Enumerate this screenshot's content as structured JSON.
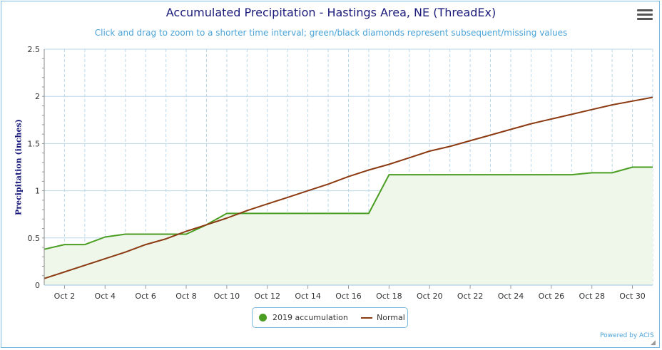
{
  "chart_data": {
    "type": "line",
    "title": "Accumulated Precipitation - Hastings Area, NE (ThreadEx)",
    "subtitle": "Click and drag to zoom to a shorter time interval; green/black diamonds represent subsequent/missing values",
    "ylabel": "Precipitation (inches)",
    "ylim": [
      0,
      2.5
    ],
    "yticks": [
      "0",
      "0.5",
      "1",
      "1.5",
      "2",
      "2.5"
    ],
    "xlim": [
      1,
      31
    ],
    "xticks": [
      {
        "day": 2,
        "label": "Oct 2"
      },
      {
        "day": 4,
        "label": "Oct 4"
      },
      {
        "day": 6,
        "label": "Oct 6"
      },
      {
        "day": 8,
        "label": "Oct 8"
      },
      {
        "day": 10,
        "label": "Oct 10"
      },
      {
        "day": 12,
        "label": "Oct 12"
      },
      {
        "day": 14,
        "label": "Oct 14"
      },
      {
        "day": 16,
        "label": "Oct 16"
      },
      {
        "day": 18,
        "label": "Oct 18"
      },
      {
        "day": 20,
        "label": "Oct 20"
      },
      {
        "day": 22,
        "label": "Oct 22"
      },
      {
        "day": 24,
        "label": "Oct 24"
      },
      {
        "day": 26,
        "label": "Oct 26"
      },
      {
        "day": 28,
        "label": "Oct 28"
      },
      {
        "day": 30,
        "label": "Oct 30"
      }
    ],
    "series": [
      {
        "name": "2019 accumulation",
        "color": "#4a9e22",
        "fill": "#eef7e9",
        "x": [
          1,
          2,
          3,
          4,
          5,
          6,
          7,
          8,
          9,
          10,
          11,
          12,
          13,
          14,
          15,
          16,
          17,
          18,
          19,
          20,
          21,
          22,
          23,
          24,
          25,
          26,
          27,
          28,
          29,
          30,
          31
        ],
        "values": [
          0.38,
          0.43,
          0.43,
          0.51,
          0.54,
          0.54,
          0.54,
          0.54,
          0.64,
          0.76,
          0.76,
          0.76,
          0.76,
          0.76,
          0.76,
          0.76,
          0.76,
          1.17,
          1.17,
          1.17,
          1.17,
          1.17,
          1.17,
          1.17,
          1.17,
          1.17,
          1.17,
          1.19,
          1.19,
          1.25,
          1.25
        ]
      },
      {
        "name": "Normal",
        "color": "#8b3a12",
        "x": [
          1,
          2,
          3,
          4,
          5,
          6,
          7,
          8,
          9,
          10,
          11,
          12,
          13,
          14,
          15,
          16,
          17,
          18,
          19,
          20,
          21,
          22,
          23,
          24,
          25,
          26,
          27,
          28,
          29,
          30,
          31
        ],
        "values": [
          0.07,
          0.14,
          0.21,
          0.28,
          0.35,
          0.43,
          0.49,
          0.57,
          0.64,
          0.71,
          0.79,
          0.86,
          0.93,
          1.0,
          1.07,
          1.15,
          1.22,
          1.28,
          1.35,
          1.42,
          1.47,
          1.53,
          1.59,
          1.65,
          1.71,
          1.76,
          1.81,
          1.86,
          1.91,
          1.95,
          1.99
        ]
      }
    ],
    "grid": true,
    "legend": "bottom-center"
  },
  "ui": {
    "menu_icon": "hamburger-menu-icon",
    "credit": "Powered by ACIS"
  }
}
